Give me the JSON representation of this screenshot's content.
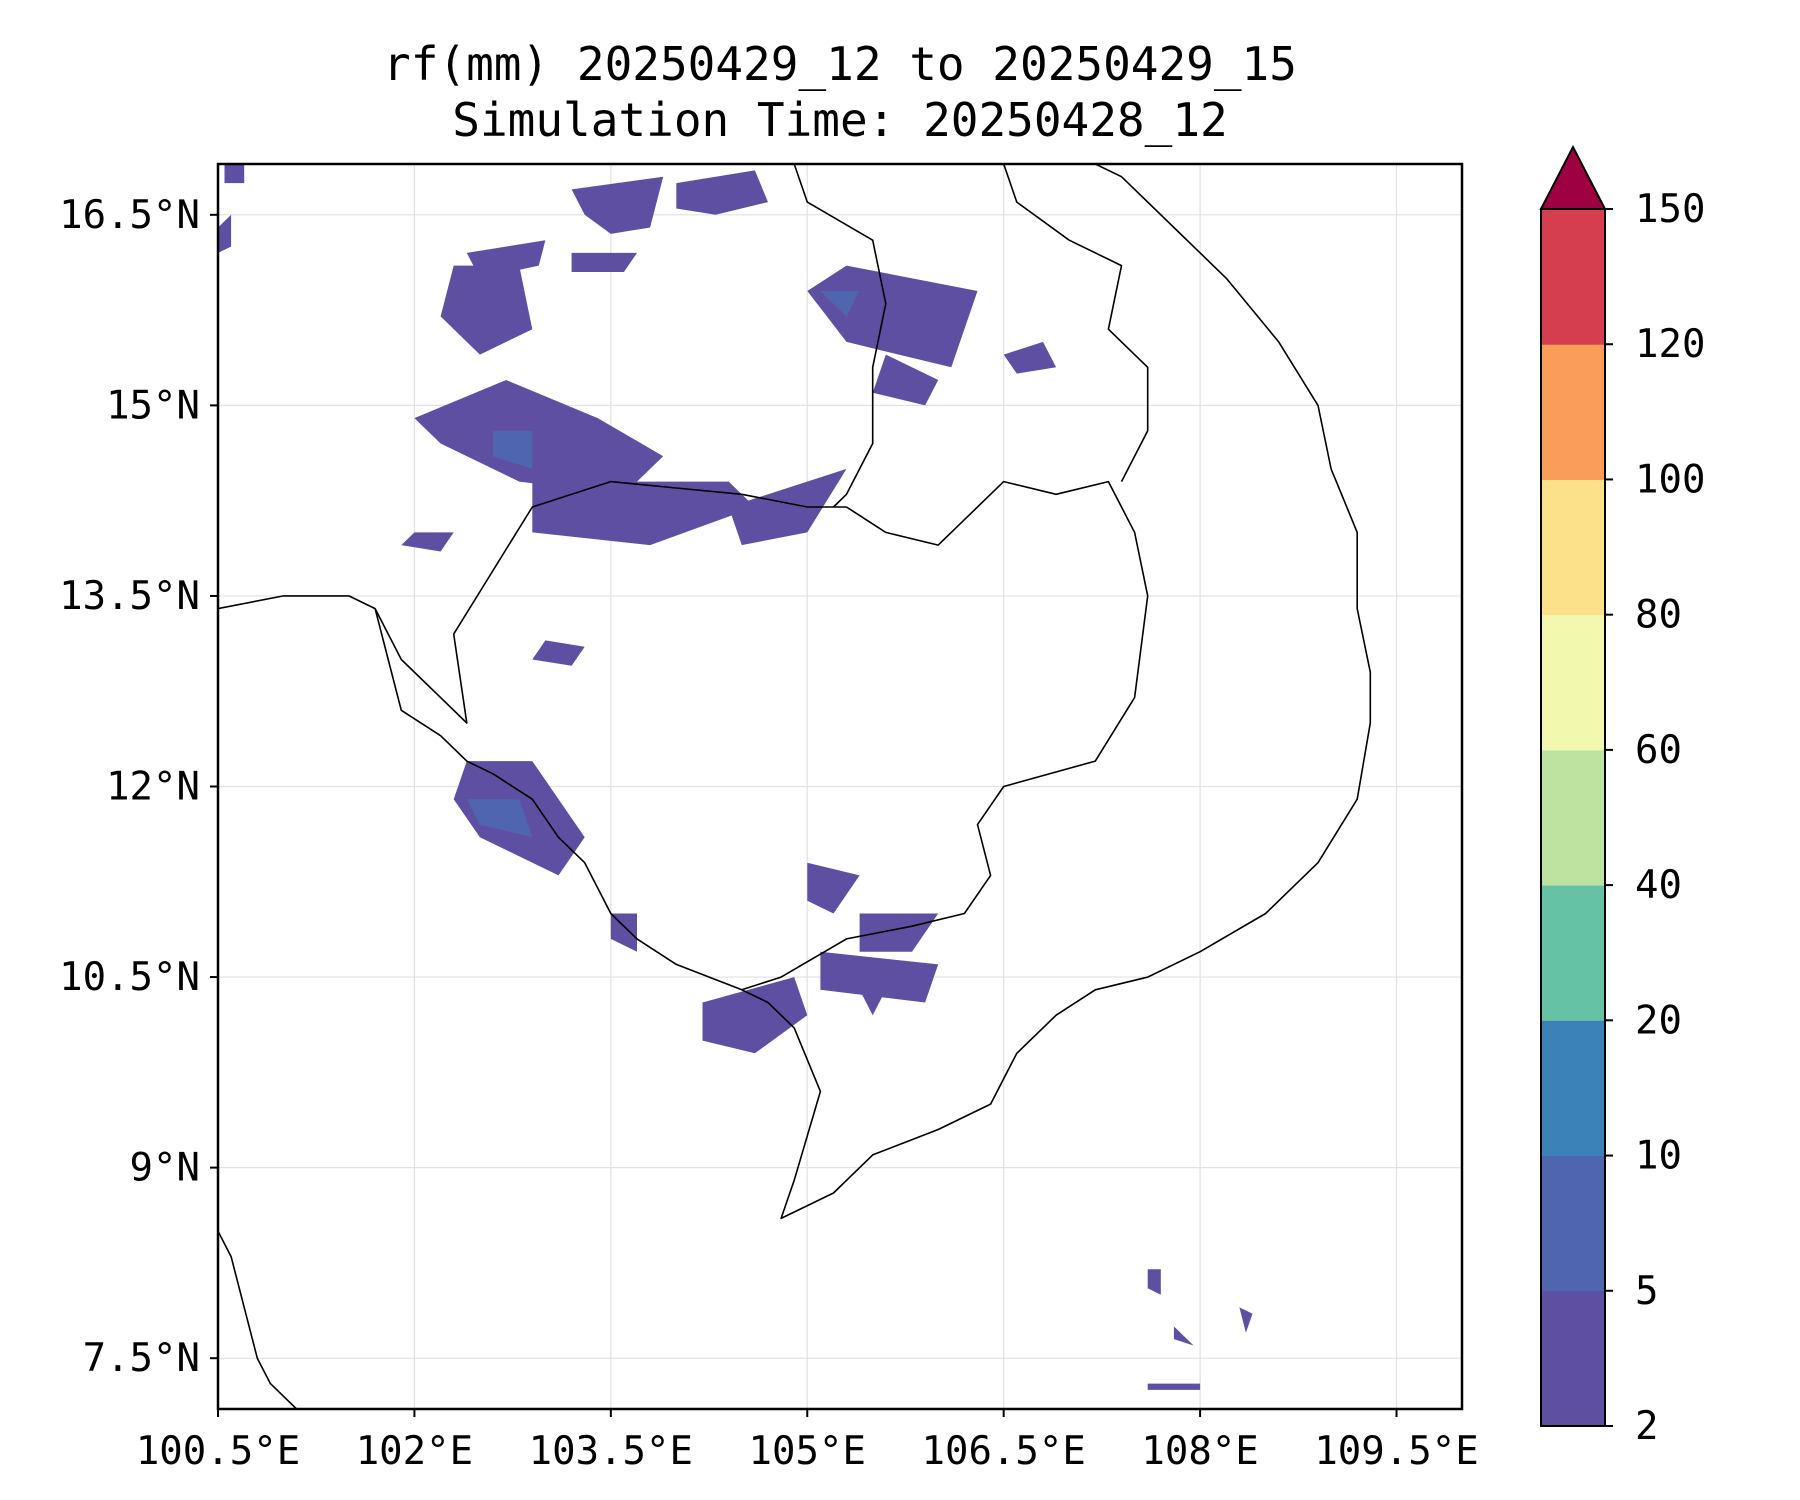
{
  "title": {
    "line1": "rf(mm) 20250429_12 to 20250429_15",
    "line2": "Simulation Time: 20250428_12"
  },
  "map": {
    "lon_range": [
      100.5,
      110.0
    ],
    "lat_range": [
      7.1,
      16.9
    ],
    "x_ticks": [
      {
        "value": 100.5,
        "label": "100.5°E"
      },
      {
        "value": 102.0,
        "label": "102°E"
      },
      {
        "value": 103.5,
        "label": "103.5°E"
      },
      {
        "value": 105.0,
        "label": "105°E"
      },
      {
        "value": 106.5,
        "label": "106.5°E"
      },
      {
        "value": 108.0,
        "label": "108°E"
      },
      {
        "value": 109.5,
        "label": "109.5°E"
      }
    ],
    "y_ticks": [
      {
        "value": 16.5,
        "label": "16.5°N"
      },
      {
        "value": 15.0,
        "label": "15°N"
      },
      {
        "value": 13.5,
        "label": "13.5°N"
      },
      {
        "value": 12.0,
        "label": "12°N"
      },
      {
        "value": 10.5,
        "label": "10.5°N"
      },
      {
        "value": 9.0,
        "label": "9°N"
      },
      {
        "value": 7.5,
        "label": "7.5°N"
      }
    ],
    "grid": true
  },
  "colorbar": {
    "levels": [
      {
        "label": "2",
        "color": "#5e4fa2"
      },
      {
        "label": "5",
        "color": "#4f66ae"
      },
      {
        "label": "10",
        "color": "#3b82b9"
      },
      {
        "label": "20",
        "color": "#66c2a5"
      },
      {
        "label": "40",
        "color": "#bde3a0"
      },
      {
        "label": "60",
        "color": "#f2f9ae"
      },
      {
        "label": "80",
        "color": "#fce08a"
      },
      {
        "label": "100",
        "color": "#f99d59"
      },
      {
        "label": "120",
        "color": "#d53e4f"
      },
      {
        "label": "150",
        "color": "#9e0142"
      }
    ],
    "extend": "max"
  },
  "rain_patches": [
    {
      "level": 1,
      "points": [
        [
          103.2,
          16.7
        ],
        [
          103.9,
          16.8
        ],
        [
          103.8,
          16.4
        ],
        [
          103.5,
          16.35
        ],
        [
          103.3,
          16.5
        ]
      ]
    },
    {
      "level": 1,
      "points": [
        [
          104.0,
          16.75
        ],
        [
          104.6,
          16.85
        ],
        [
          104.7,
          16.6
        ],
        [
          104.3,
          16.5
        ],
        [
          104.0,
          16.55
        ]
      ]
    },
    {
      "level": 1,
      "points": [
        [
          102.4,
          16.2
        ],
        [
          103.0,
          16.3
        ],
        [
          102.95,
          16.1
        ],
        [
          102.5,
          16.0
        ]
      ]
    },
    {
      "level": 1,
      "points": [
        [
          102.3,
          16.1
        ],
        [
          102.8,
          16.1
        ],
        [
          102.9,
          15.6
        ],
        [
          102.5,
          15.4
        ],
        [
          102.2,
          15.7
        ]
      ]
    },
    {
      "level": 1,
      "points": [
        [
          102.0,
          14.9
        ],
        [
          102.7,
          15.2
        ],
        [
          103.4,
          14.9
        ],
        [
          103.9,
          14.6
        ],
        [
          103.6,
          14.3
        ],
        [
          102.8,
          14.4
        ],
        [
          102.2,
          14.7
        ]
      ]
    },
    {
      "level": 1,
      "points": [
        [
          102.9,
          14.4
        ],
        [
          103.7,
          14.4
        ],
        [
          104.4,
          14.4
        ],
        [
          104.6,
          14.2
        ],
        [
          103.8,
          13.9
        ],
        [
          102.9,
          14.0
        ]
      ]
    },
    {
      "level": 1,
      "points": [
        [
          104.4,
          14.2
        ],
        [
          105.3,
          14.5
        ],
        [
          105.0,
          14.0
        ],
        [
          104.5,
          13.9
        ]
      ]
    },
    {
      "level": 1,
      "points": [
        [
          105.3,
          16.1
        ],
        [
          106.3,
          15.9
        ],
        [
          106.1,
          15.3
        ],
        [
          105.3,
          15.5
        ],
        [
          105.0,
          15.9
        ]
      ]
    },
    {
      "level": 1,
      "points": [
        [
          105.6,
          15.4
        ],
        [
          106.0,
          15.2
        ],
        [
          105.9,
          15.0
        ],
        [
          105.5,
          15.1
        ]
      ]
    },
    {
      "level": 1,
      "points": [
        [
          106.5,
          15.4
        ],
        [
          106.8,
          15.5
        ],
        [
          106.9,
          15.3
        ],
        [
          106.6,
          15.25
        ]
      ]
    },
    {
      "level": 1,
      "points": [
        [
          103.2,
          16.2
        ],
        [
          103.7,
          16.2
        ],
        [
          103.6,
          16.05
        ],
        [
          103.2,
          16.05
        ]
      ]
    },
    {
      "level": 1,
      "points": [
        [
          103.0,
          13.15
        ],
        [
          103.3,
          13.1
        ],
        [
          103.2,
          12.95
        ],
        [
          102.9,
          13.0
        ]
      ]
    },
    {
      "level": 1,
      "points": [
        [
          102.0,
          14.0
        ],
        [
          102.3,
          14.0
        ],
        [
          102.2,
          13.85
        ],
        [
          101.9,
          13.9
        ]
      ]
    },
    {
      "level": 1,
      "points": [
        [
          102.4,
          12.2
        ],
        [
          102.9,
          12.2
        ],
        [
          103.3,
          11.6
        ],
        [
          103.1,
          11.3
        ],
        [
          102.5,
          11.6
        ],
        [
          102.3,
          11.9
        ]
      ]
    },
    {
      "level": 1,
      "points": [
        [
          103.5,
          11.0
        ],
        [
          103.7,
          11.0
        ],
        [
          103.7,
          10.7
        ],
        [
          103.5,
          10.8
        ]
      ]
    },
    {
      "level": 1,
      "points": [
        [
          105.0,
          11.4
        ],
        [
          105.4,
          11.3
        ],
        [
          105.2,
          11.0
        ],
        [
          105.0,
          11.1
        ]
      ]
    },
    {
      "level": 1,
      "points": [
        [
          105.4,
          11.0
        ],
        [
          106.0,
          11.0
        ],
        [
          105.8,
          10.7
        ],
        [
          105.4,
          10.7
        ]
      ]
    },
    {
      "level": 1,
      "points": [
        [
          105.1,
          10.7
        ],
        [
          106.0,
          10.6
        ],
        [
          105.9,
          10.3
        ],
        [
          105.1,
          10.4
        ]
      ]
    },
    {
      "level": 1,
      "points": [
        [
          104.2,
          10.3
        ],
        [
          104.9,
          10.5
        ],
        [
          105.0,
          10.2
        ],
        [
          104.6,
          9.9
        ],
        [
          104.2,
          10.0
        ]
      ]
    },
    {
      "level": 1,
      "points": [
        [
          105.4,
          10.4
        ],
        [
          105.6,
          10.4
        ],
        [
          105.5,
          10.2
        ]
      ]
    },
    {
      "level": 1,
      "points": [
        [
          107.6,
          8.2
        ],
        [
          107.7,
          8.2
        ],
        [
          107.7,
          8.0
        ],
        [
          107.6,
          8.05
        ]
      ]
    },
    {
      "level": 1,
      "points": [
        [
          108.3,
          7.9
        ],
        [
          108.4,
          7.85
        ],
        [
          108.35,
          7.7
        ]
      ]
    },
    {
      "level": 1,
      "points": [
        [
          107.8,
          7.75
        ],
        [
          107.95,
          7.6
        ],
        [
          107.8,
          7.65
        ]
      ]
    },
    {
      "level": 1,
      "points": [
        [
          107.6,
          7.3
        ],
        [
          108.0,
          7.3
        ],
        [
          108.0,
          7.25
        ],
        [
          107.6,
          7.25
        ]
      ]
    },
    {
      "level": 1,
      "points": [
        [
          100.55,
          16.9
        ],
        [
          100.7,
          16.9
        ],
        [
          100.7,
          16.75
        ],
        [
          100.55,
          16.75
        ]
      ]
    },
    {
      "level": 1,
      "points": [
        [
          100.5,
          16.4
        ],
        [
          100.6,
          16.5
        ],
        [
          100.6,
          16.25
        ],
        [
          100.5,
          16.2
        ]
      ]
    },
    {
      "level": 2,
      "points": [
        [
          102.4,
          11.9
        ],
        [
          102.8,
          11.9
        ],
        [
          102.9,
          11.6
        ],
        [
          102.5,
          11.7
        ]
      ]
    },
    {
      "level": 2,
      "points": [
        [
          102.6,
          14.8
        ],
        [
          102.9,
          14.8
        ],
        [
          102.9,
          14.5
        ],
        [
          102.6,
          14.6
        ]
      ]
    },
    {
      "level": 2,
      "points": [
        [
          105.1,
          15.9
        ],
        [
          105.4,
          15.9
        ],
        [
          105.3,
          15.7
        ]
      ]
    }
  ],
  "coastlines": [
    {
      "points": [
        [
          100.5,
          13.4
        ],
        [
          101.0,
          13.5
        ],
        [
          101.5,
          13.5
        ],
        [
          101.7,
          13.4
        ],
        [
          101.8,
          13.0
        ],
        [
          101.9,
          12.6
        ],
        [
          102.2,
          12.4
        ],
        [
          102.4,
          12.2
        ],
        [
          102.6,
          12.1
        ],
        [
          102.9,
          11.9
        ],
        [
          103.1,
          11.6
        ],
        [
          103.3,
          11.4
        ],
        [
          103.5,
          11.0
        ],
        [
          103.7,
          10.8
        ],
        [
          104.0,
          10.6
        ],
        [
          104.5,
          10.4
        ],
        [
          104.7,
          10.3
        ],
        [
          104.9,
          10.1
        ],
        [
          105.1,
          9.6
        ],
        [
          104.9,
          8.9
        ],
        [
          104.8,
          8.6
        ],
        [
          105.2,
          8.8
        ],
        [
          105.5,
          9.1
        ],
        [
          106.0,
          9.3
        ],
        [
          106.4,
          9.5
        ],
        [
          106.6,
          9.9
        ],
        [
          106.9,
          10.2
        ],
        [
          107.2,
          10.4
        ],
        [
          107.6,
          10.5
        ],
        [
          108.0,
          10.7
        ],
        [
          108.5,
          11.0
        ],
        [
          108.9,
          11.4
        ],
        [
          109.2,
          11.9
        ],
        [
          109.3,
          12.5
        ],
        [
          109.3,
          12.9
        ],
        [
          109.2,
          13.4
        ],
        [
          109.2,
          14.0
        ],
        [
          109.0,
          14.5
        ],
        [
          108.9,
          15.0
        ],
        [
          108.6,
          15.5
        ],
        [
          108.2,
          16.0
        ],
        [
          107.8,
          16.4
        ],
        [
          107.4,
          16.8
        ],
        [
          107.2,
          16.9
        ]
      ]
    },
    {
      "points": [
        [
          100.5,
          8.5
        ],
        [
          100.6,
          8.3
        ],
        [
          100.7,
          7.9
        ],
        [
          100.8,
          7.5
        ],
        [
          100.9,
          7.3
        ],
        [
          101.1,
          7.1
        ]
      ]
    }
  ],
  "borders": [
    {
      "points": [
        [
          101.7,
          13.4
        ],
        [
          101.9,
          13.0
        ],
        [
          102.2,
          12.7
        ],
        [
          102.4,
          12.5
        ],
        [
          102.3,
          13.2
        ],
        [
          102.6,
          13.7
        ],
        [
          102.9,
          14.2
        ],
        [
          103.5,
          14.4
        ],
        [
          104.0,
          14.35
        ],
        [
          104.5,
          14.3
        ],
        [
          105.0,
          14.2
        ],
        [
          105.3,
          14.2
        ]
      ]
    },
    {
      "points": [
        [
          105.3,
          14.2
        ],
        [
          105.6,
          14.0
        ],
        [
          106.0,
          13.9
        ],
        [
          106.2,
          14.1
        ],
        [
          106.5,
          14.4
        ],
        [
          106.9,
          14.3
        ],
        [
          107.3,
          14.4
        ],
        [
          107.5,
          14.0
        ],
        [
          107.6,
          13.5
        ],
        [
          107.5,
          12.7
        ],
        [
          107.2,
          12.2
        ],
        [
          106.5,
          12.0
        ],
        [
          106.3,
          11.7
        ],
        [
          106.4,
          11.3
        ],
        [
          106.2,
          11.0
        ],
        [
          105.8,
          10.9
        ],
        [
          105.3,
          10.8
        ],
        [
          104.8,
          10.5
        ],
        [
          104.5,
          10.4
        ]
      ]
    },
    {
      "points": [
        [
          104.9,
          16.9
        ],
        [
          105.0,
          16.6
        ],
        [
          105.5,
          16.3
        ],
        [
          105.6,
          15.8
        ],
        [
          105.5,
          15.3
        ],
        [
          105.5,
          14.7
        ],
        [
          105.3,
          14.3
        ],
        [
          105.2,
          14.2
        ]
      ]
    },
    {
      "points": [
        [
          106.5,
          16.9
        ],
        [
          106.6,
          16.6
        ],
        [
          107.0,
          16.3
        ],
        [
          107.4,
          16.1
        ],
        [
          107.3,
          15.6
        ],
        [
          107.6,
          15.3
        ],
        [
          107.6,
          14.8
        ],
        [
          107.4,
          14.4
        ]
      ]
    }
  ]
}
